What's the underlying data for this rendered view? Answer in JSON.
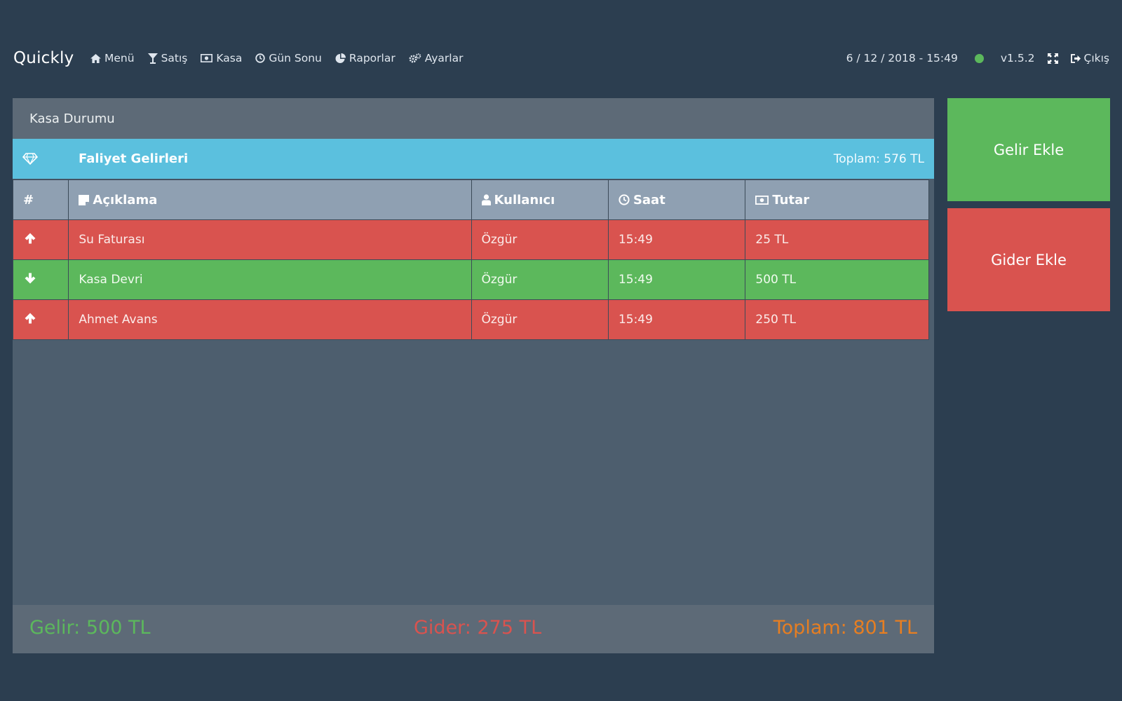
{
  "app": {
    "brand": "Quickly"
  },
  "nav": {
    "items": [
      {
        "label": "Menü",
        "icon": "home-icon"
      },
      {
        "label": "Satış",
        "icon": "glass-icon"
      },
      {
        "label": "Kasa",
        "icon": "money-icon"
      },
      {
        "label": "Gün Sonu",
        "icon": "clock-icon"
      },
      {
        "label": "Raporlar",
        "icon": "pie-chart-icon"
      },
      {
        "label": "Ayarlar",
        "icon": "gears-icon"
      }
    ]
  },
  "header_right": {
    "datetime": "6 / 12 / 2018 - 15:49",
    "status_color": "#5cb85c",
    "version": "v1.5.2",
    "logout_label": "Çıkış"
  },
  "panel": {
    "title": "Kasa Durumu",
    "section": {
      "title": "Faliyet Gelirleri",
      "total": "Toplam: 576 TL",
      "color": "#5bc0de"
    },
    "table": {
      "headers": {
        "index": "#",
        "description": "Açıklama",
        "user": "Kullanıcı",
        "time": "Saat",
        "amount": "Tutar"
      },
      "rows": [
        {
          "direction": "up",
          "description": "Su Faturası",
          "user": "Özgür",
          "time": "15:49",
          "amount": "25 TL",
          "color": "#d9534f"
        },
        {
          "direction": "down",
          "description": "Kasa Devri",
          "user": "Özgür",
          "time": "15:49",
          "amount": "500 TL",
          "color": "#5cb85c"
        },
        {
          "direction": "up",
          "description": "Ahmet Avans",
          "user": "Özgür",
          "time": "15:49",
          "amount": "250 TL",
          "color": "#d9534f"
        }
      ]
    },
    "footer": {
      "income": "Gelir: 500 TL",
      "expense": "Gider: 275 TL",
      "total": "Toplam: 801 TL"
    }
  },
  "actions": {
    "add_income": "Gelir Ekle",
    "add_expense": "Gider Ekle"
  }
}
